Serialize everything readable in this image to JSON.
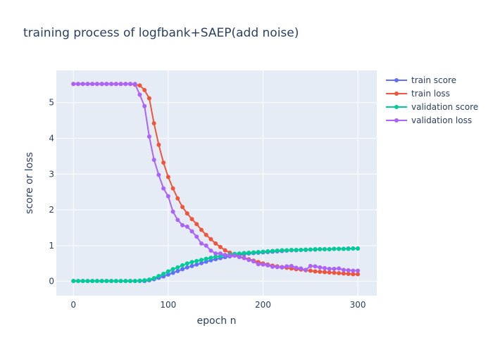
{
  "chart_data": {
    "type": "line",
    "title": "training process of logfbank+SAEP(add noise)",
    "xlabel": "epoch n",
    "ylabel": "score or loss",
    "xlim": [
      -18,
      320
    ],
    "ylim": [
      -0.4,
      5.9
    ],
    "x_ticks": [
      0,
      100,
      200,
      300
    ],
    "y_ticks": [
      0,
      1,
      2,
      3,
      4,
      5
    ],
    "grid": true,
    "legend_position": "top-right outside",
    "background_color": "#E5ECF6",
    "x": [
      0,
      5,
      10,
      15,
      20,
      25,
      30,
      35,
      40,
      45,
      50,
      55,
      60,
      65,
      70,
      75,
      80,
      85,
      90,
      95,
      100,
      105,
      110,
      115,
      120,
      125,
      130,
      135,
      140,
      145,
      150,
      155,
      160,
      165,
      170,
      175,
      180,
      185,
      190,
      195,
      200,
      205,
      210,
      215,
      220,
      225,
      230,
      235,
      240,
      245,
      250,
      255,
      260,
      265,
      270,
      275,
      280,
      285,
      290,
      295,
      300
    ],
    "series": [
      {
        "name": "train score",
        "color": "#636EFA",
        "values": [
          0.01,
          0.01,
          0.01,
          0.01,
          0.01,
          0.01,
          0.01,
          0.01,
          0.01,
          0.01,
          0.01,
          0.01,
          0.01,
          0.01,
          0.01,
          0.01,
          0.03,
          0.06,
          0.1,
          0.14,
          0.19,
          0.24,
          0.29,
          0.34,
          0.39,
          0.43,
          0.47,
          0.51,
          0.55,
          0.59,
          0.62,
          0.65,
          0.68,
          0.7,
          0.72,
          0.74,
          0.76,
          0.78,
          0.79,
          0.8,
          0.81,
          0.82,
          0.83,
          0.84,
          0.85,
          0.86,
          0.87,
          0.87,
          0.88,
          0.88,
          0.89,
          0.89,
          0.9,
          0.9,
          0.9,
          0.91,
          0.91,
          0.91,
          0.92,
          0.92,
          0.92
        ]
      },
      {
        "name": "train loss",
        "color": "#EF553B",
        "values": [
          5.52,
          5.52,
          5.52,
          5.52,
          5.52,
          5.52,
          5.52,
          5.52,
          5.52,
          5.52,
          5.52,
          5.52,
          5.52,
          5.5,
          5.48,
          5.35,
          5.12,
          4.42,
          3.82,
          3.32,
          2.92,
          2.6,
          2.32,
          2.08,
          1.9,
          1.74,
          1.6,
          1.44,
          1.3,
          1.18,
          1.06,
          0.96,
          0.87,
          0.8,
          0.74,
          0.7,
          0.66,
          0.62,
          0.58,
          0.54,
          0.5,
          0.47,
          0.44,
          0.42,
          0.4,
          0.38,
          0.36,
          0.34,
          0.33,
          0.31,
          0.3,
          0.28,
          0.27,
          0.26,
          0.25,
          0.24,
          0.23,
          0.22,
          0.21,
          0.2,
          0.2
        ]
      },
      {
        "name": "validation score",
        "color": "#00CC96",
        "values": [
          0.01,
          0.01,
          0.01,
          0.01,
          0.01,
          0.01,
          0.01,
          0.01,
          0.01,
          0.01,
          0.01,
          0.01,
          0.01,
          0.01,
          0.02,
          0.03,
          0.05,
          0.09,
          0.15,
          0.21,
          0.28,
          0.34,
          0.39,
          0.45,
          0.5,
          0.54,
          0.57,
          0.6,
          0.63,
          0.66,
          0.69,
          0.71,
          0.73,
          0.75,
          0.77,
          0.78,
          0.79,
          0.8,
          0.81,
          0.82,
          0.83,
          0.84,
          0.85,
          0.86,
          0.87,
          0.87,
          0.88,
          0.88,
          0.88,
          0.89,
          0.89,
          0.9,
          0.9,
          0.9,
          0.9,
          0.91,
          0.91,
          0.91,
          0.91,
          0.92,
          0.92
        ]
      },
      {
        "name": "validation loss",
        "color": "#AB63FA",
        "values": [
          5.52,
          5.52,
          5.52,
          5.52,
          5.52,
          5.52,
          5.52,
          5.52,
          5.52,
          5.52,
          5.52,
          5.52,
          5.52,
          5.52,
          5.22,
          4.9,
          4.05,
          3.4,
          2.98,
          2.6,
          2.38,
          1.95,
          1.72,
          1.57,
          1.53,
          1.4,
          1.25,
          1.06,
          1.0,
          0.86,
          0.78,
          0.78,
          0.74,
          0.72,
          0.72,
          0.68,
          0.65,
          0.6,
          0.56,
          0.48,
          0.47,
          0.45,
          0.41,
          0.4,
          0.39,
          0.42,
          0.43,
          0.38,
          0.36,
          0.32,
          0.43,
          0.42,
          0.39,
          0.37,
          0.35,
          0.35,
          0.36,
          0.32,
          0.31,
          0.3,
          0.3
        ]
      }
    ]
  }
}
